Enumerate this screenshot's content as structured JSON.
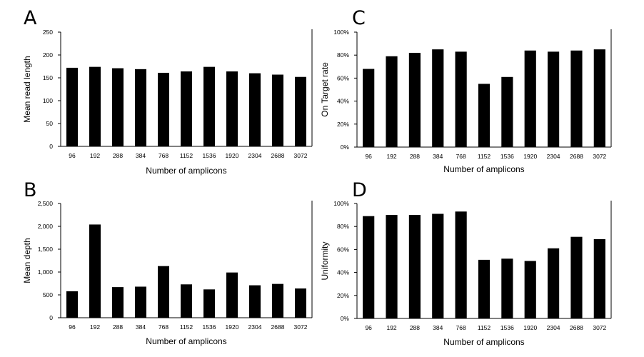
{
  "chart_data": [
    {
      "panel": "A",
      "type": "bar",
      "xlabel": "Number of amplicons",
      "ylabel": "Mean read length",
      "categories": [
        "96",
        "192",
        "288",
        "384",
        "768",
        "1152",
        "1536",
        "1920",
        "2304",
        "2688",
        "3072"
      ],
      "values": [
        172,
        174,
        171,
        169,
        161,
        164,
        174,
        164,
        160,
        157,
        152
      ],
      "ylim": [
        0,
        250
      ],
      "yticks": [
        "0",
        "50",
        "100",
        "150",
        "200",
        "250"
      ]
    },
    {
      "panel": "C",
      "type": "bar",
      "xlabel": "Number of amplicons",
      "ylabel": "On Target rate",
      "categories": [
        "96",
        "192",
        "288",
        "384",
        "768",
        "1152",
        "1536",
        "1920",
        "2304",
        "2688",
        "3072"
      ],
      "values": [
        68,
        79,
        82,
        85,
        83,
        55,
        61,
        84,
        83,
        84,
        85
      ],
      "ylim": [
        0,
        100
      ],
      "yticks": [
        "0%",
        "20%",
        "40%",
        "60%",
        "80%",
        "100%"
      ]
    },
    {
      "panel": "B",
      "type": "bar",
      "xlabel": "Number of amplicons",
      "ylabel": "Mean depth",
      "categories": [
        "96",
        "192",
        "288",
        "384",
        "768",
        "1152",
        "1536",
        "1920",
        "2304",
        "2688",
        "3072"
      ],
      "values": [
        580,
        2040,
        670,
        680,
        1130,
        730,
        620,
        990,
        710,
        740,
        640
      ],
      "ylim": [
        0,
        2500
      ],
      "yticks": [
        "0",
        "500",
        "1,000",
        "1,500",
        "2,000",
        "2,500"
      ]
    },
    {
      "panel": "D",
      "type": "bar",
      "xlabel": "Number of amplicons",
      "ylabel": "Uniformity",
      "categories": [
        "96",
        "192",
        "288",
        "384",
        "768",
        "1152",
        "1536",
        "1920",
        "2304",
        "2688",
        "3072"
      ],
      "values": [
        89,
        90,
        90,
        91,
        93,
        51,
        52,
        50,
        61,
        71,
        69
      ],
      "ylim": [
        0,
        100
      ],
      "yticks": [
        "0%",
        "20%",
        "40%",
        "60%",
        "80%",
        "100%"
      ]
    }
  ]
}
